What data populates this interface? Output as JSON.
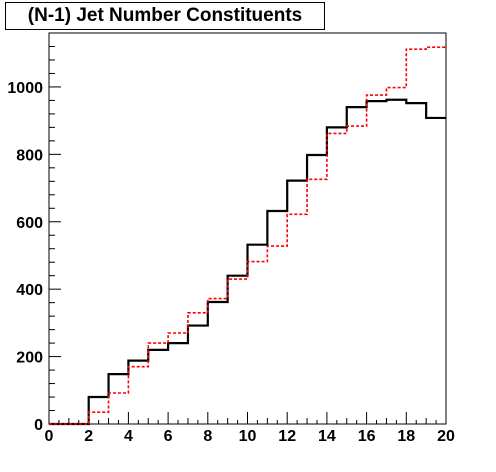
{
  "chart_data": {
    "type": "line",
    "title": "(N-1) Jet Number Constituents",
    "xlabel": "",
    "ylabel": "",
    "xlim": [
      0,
      20
    ],
    "ylim": [
      0,
      1160
    ],
    "x_ticks": [
      0,
      2,
      4,
      6,
      8,
      10,
      12,
      14,
      16,
      18,
      20
    ],
    "y_ticks": [
      0,
      200,
      400,
      600,
      800,
      1000
    ],
    "bin_edges": [
      0,
      1,
      2,
      3,
      4,
      5,
      6,
      7,
      8,
      9,
      10,
      11,
      12,
      13,
      14,
      15,
      16,
      17,
      18,
      19,
      20
    ],
    "series": [
      {
        "style": "step-solid",
        "color": "#000000",
        "values": [
          0,
          0,
          80,
          148,
          188,
          220,
          240,
          292,
          362,
          440,
          532,
          632,
          722,
          798,
          880,
          940,
          958,
          962,
          952,
          908
        ]
      },
      {
        "style": "step-dashed",
        "color": "#ff0000",
        "values": [
          0,
          0,
          35,
          92,
          170,
          240,
          270,
          330,
          372,
          430,
          482,
          528,
          622,
          726,
          862,
          884,
          976,
          998,
          1112,
          1118
        ]
      }
    ],
    "grid": false
  }
}
